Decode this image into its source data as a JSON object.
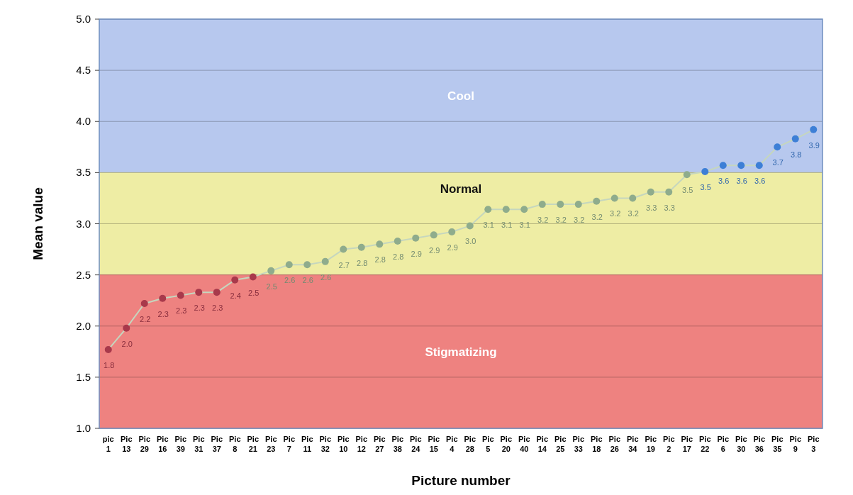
{
  "chart_data": {
    "type": "line",
    "xlabel": "Picture number",
    "ylabel": "Mean value",
    "categories": [
      "pic 1",
      "Pic 13",
      "Pic 29",
      "Pic 16",
      "Pic 39",
      "Pic 31",
      "Pic 37",
      "Pic 8",
      "Pic 21",
      "Pic 23",
      "Pic 7",
      "Pic 11",
      "Pic 32",
      "Pic 10",
      "Pic 12",
      "Pic 27",
      "Pic 38",
      "Pic 24",
      "Pic 15",
      "Pic 4",
      "Pic 28",
      "Pic 5",
      "Pic 20",
      "Pic 40",
      "Pic 14",
      "Pic 25",
      "Pic 33",
      "Pic 18",
      "Pic 26",
      "Pic 34",
      "Pic 19",
      "Pic 2",
      "Pic 17",
      "Pic 22",
      "Pic 6",
      "Pic 30",
      "Pic 36",
      "Pic 35",
      "Pic 9",
      "Pic 3"
    ],
    "series": [
      {
        "color": "#c5d6be",
        "marker": "circle",
        "values": [
          1.77,
          1.98,
          2.22,
          2.27,
          2.3,
          2.33,
          2.33,
          2.45,
          2.48,
          2.54,
          2.6,
          2.6,
          2.63,
          2.75,
          2.77,
          2.8,
          2.83,
          2.86,
          2.89,
          2.92,
          2.98,
          3.14,
          3.14,
          3.14,
          3.19,
          3.19,
          3.19,
          3.22,
          3.25,
          3.25,
          3.31,
          3.31,
          3.48,
          3.51,
          3.57,
          3.57,
          3.57,
          3.75,
          3.83,
          3.92
        ],
        "value_labels": [
          "1.8",
          "2.0",
          "2.2",
          "2.3",
          "2.3",
          "2.3",
          "2.3",
          "2.4",
          "2.5",
          "2.5",
          "2.6",
          "2.6",
          "2.6",
          "2.7",
          "2.8",
          "2.8",
          "2.8",
          "2.9",
          "2.9",
          "2.9",
          "3.0",
          "3.1",
          "3.1",
          "3.1",
          "3.2",
          "3.2",
          "3.2",
          "3.2",
          "3.2",
          "3.2",
          "3.3",
          "3.3",
          "3.5",
          "3.5",
          "3.6",
          "3.6",
          "3.6",
          "3.7",
          "3.8",
          "3.9"
        ],
        "colors": [
          "#a8394b",
          "#a8394b",
          "#a8394b",
          "#a8394b",
          "#a8394b",
          "#a8394b",
          "#a8394b",
          "#a8394b",
          "#a8394b",
          "#8fac8c",
          "#8fac8c",
          "#8fac8c",
          "#8fac8c",
          "#8fac8c",
          "#8fac8c",
          "#8fac8c",
          "#8fac8c",
          "#8fac8c",
          "#8fac8c",
          "#8fac8c",
          "#8fac8c",
          "#8fac8c",
          "#8fac8c",
          "#8fac8c",
          "#8fac8c",
          "#8fac8c",
          "#8fac8c",
          "#8fac8c",
          "#8fac8c",
          "#8fac8c",
          "#8fac8c",
          "#8fac8c",
          "#8fac8c",
          "#3d7fd6",
          "#3d7fd6",
          "#3d7fd6",
          "#3d7fd6",
          "#3d7fd6",
          "#3d7fd6",
          "#3d7fd6"
        ]
      }
    ],
    "ylim": [
      1,
      5
    ],
    "yticks": [
      {
        "value": 1,
        "label": "1.0"
      },
      {
        "value": 1.5,
        "label": "1.5"
      },
      {
        "value": 2,
        "label": "2.0"
      },
      {
        "value": 2.5,
        "label": "2.5"
      },
      {
        "value": 3,
        "label": "3.0"
      },
      {
        "value": 3.5,
        "label": "3.5"
      },
      {
        "value": 4,
        "label": "4.0"
      },
      {
        "value": 4.5,
        "label": "4.5"
      },
      {
        "value": 5,
        "label": "5.0"
      }
    ],
    "grid": "y",
    "bands": [
      {
        "axis": "y",
        "from": 1,
        "to": 2.5,
        "label": "Stigmatizing",
        "color": "#ee8280"
      },
      {
        "axis": "y",
        "from": 2.5,
        "to": 3.5,
        "label": "Normal",
        "color": "#eeeda4"
      },
      {
        "axis": "y",
        "from": 3.5,
        "to": 5,
        "label": "Cool",
        "color": "#b7c8ee"
      }
    ]
  }
}
